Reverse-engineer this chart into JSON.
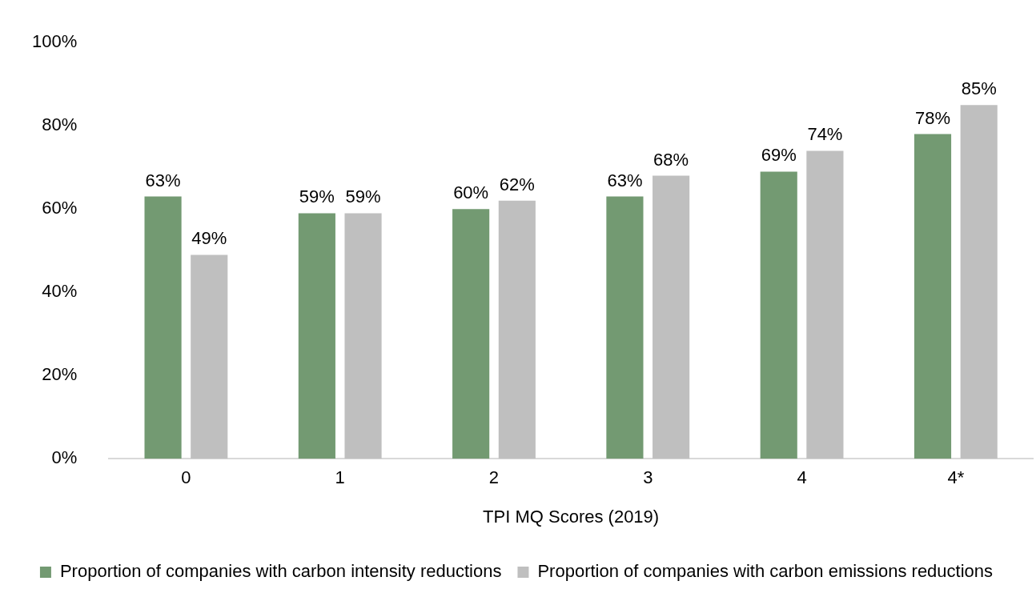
{
  "chart_data": {
    "type": "bar",
    "xlabel": "TPI MQ Scores (2019)",
    "categories": [
      "0",
      "1",
      "2",
      "3",
      "4",
      "4*"
    ],
    "series": [
      {
        "name": "Proportion of companies with carbon intensity reductions",
        "color": "#739a72",
        "values": [
          63,
          59,
          60,
          63,
          69,
          78
        ],
        "value_labels": [
          "63%",
          "59%",
          "60%",
          "63%",
          "69%",
          "78%"
        ]
      },
      {
        "name": "Proportion of companies with carbon emissions reductions",
        "color": "#bfbfbf",
        "values": [
          49,
          59,
          62,
          68,
          74,
          85
        ],
        "value_labels": [
          "49%",
          "59%",
          "62%",
          "68%",
          "74%",
          "85%"
        ]
      }
    ],
    "ylim": [
      0,
      100
    ],
    "yticks": [
      {
        "value": 0,
        "label": "0%"
      },
      {
        "value": 20,
        "label": "20%"
      },
      {
        "value": 40,
        "label": "40%"
      },
      {
        "value": 60,
        "label": "60%"
      },
      {
        "value": 80,
        "label": "80%"
      },
      {
        "value": 100,
        "label": "100%"
      }
    ],
    "grid": false,
    "legend": "bottom"
  }
}
